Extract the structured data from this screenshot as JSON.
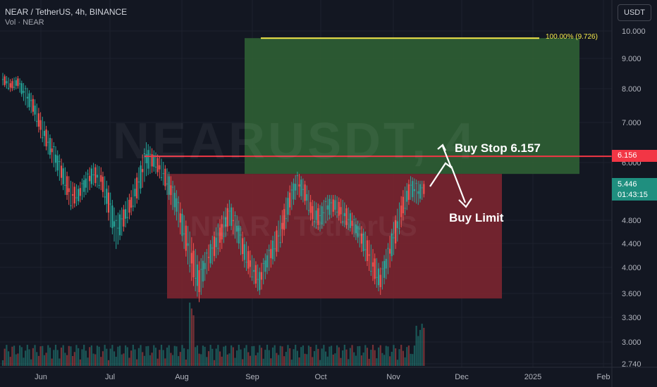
{
  "header": {
    "symbol_line": "NEAR / TetherUS, 4h, BINANCE",
    "volume_line": "Vol · NEAR",
    "currency_button": "USDT",
    "watermark": "NEARUSDT, 4",
    "watermark2": "NEAR / TetherUS"
  },
  "colors": {
    "background": "#131722",
    "up": "#26a69a",
    "down": "#ef5350",
    "target_zone": "#2e5e34",
    "stop_zone": "#7a2530",
    "level_line": "#f23645",
    "fib_line": "#f5e94a"
  },
  "chart_data": {
    "type": "candlestick",
    "x_axis_labels": [
      "Jun",
      "Jul",
      "Aug",
      "Sep",
      "Oct",
      "Nov",
      "Dec",
      "2025",
      "Feb"
    ],
    "y_axis_labels": [
      "10.000",
      "9.000",
      "8.000",
      "7.000",
      "6.000",
      "4.800",
      "4.400",
      "4.000",
      "3.600",
      "3.300",
      "3.000",
      "2.740"
    ],
    "y_scale": "log",
    "ylim": [
      2.74,
      10.6
    ],
    "price_path_note": "",
    "price_path": [
      [
        8.1,
        8.5
      ],
      [
        7.9,
        8.3
      ],
      [
        8.0,
        8.4
      ],
      [
        7.5,
        8.1
      ],
      [
        7.2,
        7.8
      ],
      [
        6.6,
        7.3
      ],
      [
        6.2,
        6.8
      ],
      [
        5.8,
        6.4
      ],
      [
        5.4,
        6.0
      ],
      [
        5.0,
        5.6
      ],
      [
        5.1,
        5.5
      ],
      [
        5.3,
        5.8
      ],
      [
        5.5,
        6.0
      ],
      [
        5.4,
        5.9
      ],
      [
        4.8,
        5.5
      ],
      [
        4.3,
        4.9
      ],
      [
        4.6,
        5.1
      ],
      [
        4.9,
        5.4
      ],
      [
        5.2,
        5.9
      ],
      [
        5.7,
        6.5
      ],
      [
        5.8,
        6.3
      ],
      [
        5.6,
        6.1
      ],
      [
        5.2,
        5.8
      ],
      [
        4.8,
        5.4
      ],
      [
        4.3,
        4.9
      ],
      [
        3.8,
        4.5
      ],
      [
        3.5,
        4.1
      ],
      [
        3.9,
        4.3
      ],
      [
        4.1,
        4.6
      ],
      [
        4.3,
        4.9
      ],
      [
        4.7,
        5.2
      ],
      [
        4.4,
        4.9
      ],
      [
        4.0,
        4.5
      ],
      [
        3.8,
        4.2
      ],
      [
        3.6,
        4.0
      ],
      [
        3.9,
        4.3
      ],
      [
        4.1,
        4.6
      ],
      [
        4.4,
        5.0
      ],
      [
        4.9,
        5.5
      ],
      [
        5.3,
        5.8
      ],
      [
        5.1,
        5.6
      ],
      [
        4.7,
        5.2
      ],
      [
        4.6,
        5.1
      ],
      [
        4.8,
        5.3
      ],
      [
        4.9,
        5.3
      ],
      [
        4.7,
        5.2
      ],
      [
        4.6,
        5.0
      ],
      [
        4.4,
        4.8
      ],
      [
        4.1,
        4.6
      ],
      [
        3.8,
        4.3
      ],
      [
        3.6,
        4.0
      ],
      [
        3.9,
        4.4
      ],
      [
        4.3,
        4.9
      ],
      [
        4.8,
        5.4
      ],
      [
        5.2,
        5.7
      ],
      [
        5.1,
        5.6
      ],
      [
        5.3,
        5.6
      ]
    ],
    "last_price": "5.446",
    "countdown": "01:43:15",
    "level_price": "6.156",
    "level_value": 6.156,
    "target_zone": {
      "top": 9.726,
      "bottom": 5.75
    },
    "stop_zone": {
      "top": 5.75,
      "bottom": 3.55
    },
    "fib_label": "100.00% (9.726)",
    "annotations": {
      "buy_stop": "Buy Stop 6.157",
      "buy_limit": "Buy Limit"
    }
  }
}
